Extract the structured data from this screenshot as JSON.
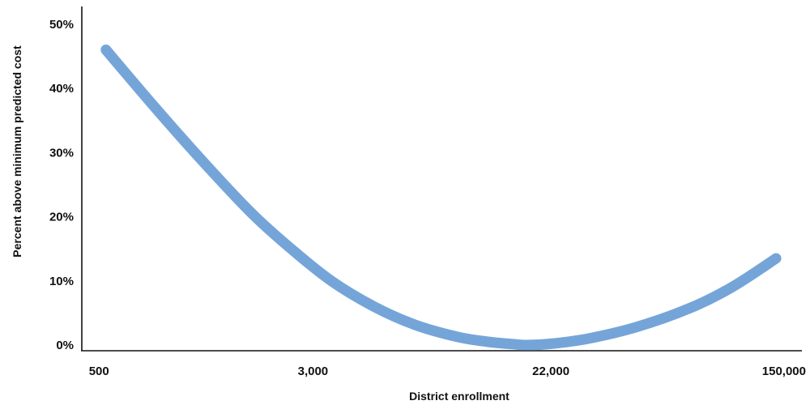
{
  "chart_data": {
    "type": "line",
    "title": "",
    "xlabel": "District enrollment",
    "ylabel": "Percent above minimum predicted cost",
    "x_scale": "log",
    "xlim": [
      430,
      180000
    ],
    "ylim": [
      0,
      52
    ],
    "grid": false,
    "legend": "none",
    "x_ticks": [
      {
        "value": 500,
        "label": "500"
      },
      {
        "value": 3000,
        "label": "3,000"
      },
      {
        "value": 22000,
        "label": "22,000"
      },
      {
        "value": 150000,
        "label": "150,000"
      }
    ],
    "y_ticks": [
      {
        "value": 0,
        "label": "0%"
      },
      {
        "value": 10,
        "label": "10%"
      },
      {
        "value": 20,
        "label": "20%"
      },
      {
        "value": 30,
        "label": "30%"
      },
      {
        "value": 40,
        "label": "40%"
      },
      {
        "value": 50,
        "label": "50%"
      }
    ],
    "series": [
      {
        "color": "#75a5d8",
        "x": [
          530,
          800,
          1200,
          1800,
          2500,
          3500,
          5000,
          7000,
          10000,
          13000,
          16000,
          18000,
          22000,
          30000,
          45000,
          70000,
          100000,
          145000
        ],
        "y": [
          46,
          37,
          28.5,
          20.5,
          15,
          10,
          6,
          3.2,
          1.3,
          0.5,
          0.15,
          0,
          0.2,
          1,
          2.8,
          5.7,
          9,
          13.5
        ]
      }
    ]
  }
}
